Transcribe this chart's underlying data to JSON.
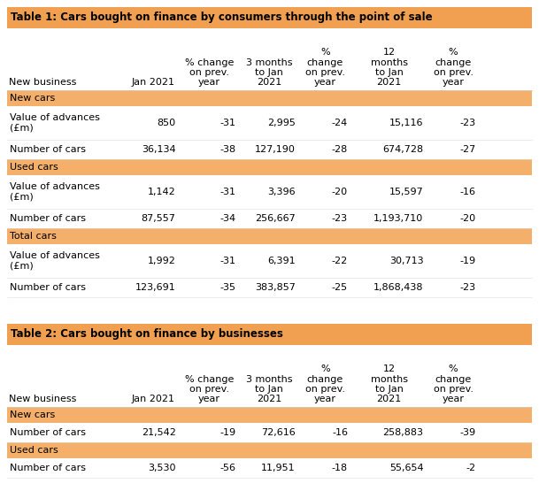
{
  "table1_title": "Table 1: Cars bought on finance by consumers through the point of sale",
  "table2_title": "Table 2: Cars bought on finance by businesses",
  "orange_title": "#F0A050",
  "orange_section": "#F4B06A",
  "white": "#FFFFFF",
  "black": "#000000",
  "col_headers": [
    "New business",
    "Jan 2021",
    "% change\non prev.\nyear",
    "3 months\nto Jan\n2021",
    "%\nchange\non prev.\nyear",
    "12\nmonths\nto Jan\n2021",
    "%\nchange\non prev.\nyear"
  ],
  "table1_sections": [
    {
      "label": "New cars",
      "rows": [
        [
          "Value of advances\n(£m)",
          "850",
          "-31",
          "2,995",
          "-24",
          "15,116",
          "-23"
        ],
        [
          "Number of cars",
          "36,134",
          "-38",
          "127,190",
          "-28",
          "674,728",
          "-27"
        ]
      ]
    },
    {
      "label": "Used cars",
      "rows": [
        [
          "Value of advances\n(£m)",
          "1,142",
          "-31",
          "3,396",
          "-20",
          "15,597",
          "-16"
        ],
        [
          "Number of cars",
          "87,557",
          "-34",
          "256,667",
          "-23",
          "1,193,710",
          "-20"
        ]
      ]
    },
    {
      "label": "Total cars",
      "rows": [
        [
          "Value of advances\n(£m)",
          "1,992",
          "-31",
          "6,391",
          "-22",
          "30,713",
          "-19"
        ],
        [
          "Number of cars",
          "123,691",
          "-35",
          "383,857",
          "-25",
          "1,868,438",
          "-23"
        ]
      ]
    }
  ],
  "table2_sections": [
    {
      "label": "New cars",
      "rows": [
        [
          "Number of cars",
          "21,542",
          "-19",
          "72,616",
          "-16",
          "258,883",
          "-39"
        ]
      ]
    },
    {
      "label": "Used cars",
      "rows": [
        [
          "Number of cars",
          "3,530",
          "-56",
          "11,951",
          "-18",
          "55,654",
          "-2"
        ]
      ]
    }
  ],
  "font_size": 8,
  "title_font_size": 8.5,
  "col_proportions": [
    0.228,
    0.1,
    0.114,
    0.114,
    0.1,
    0.144,
    0.1
  ]
}
